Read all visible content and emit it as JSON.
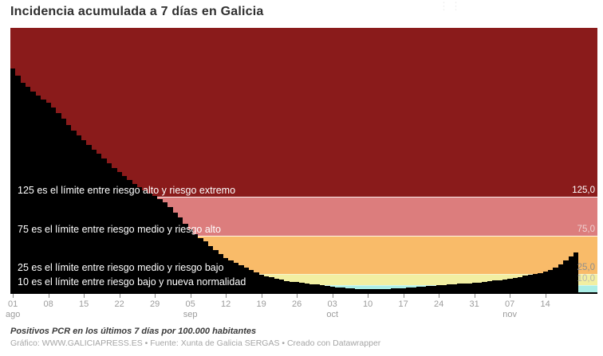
{
  "title": "Incidencia acumulada a 7 días en Galicia",
  "menu_icon_glyph": "⋮⋮",
  "footer": {
    "note": "Positivos PCR en los últimos 7 días por 100.000 habitantes",
    "credit": "Gráfico: WWW.GALICIAPRESS.ES • Fuente: Xunta de Galicia SERGAS • Creado con Datawrapper"
  },
  "chart_data": {
    "type": "bar",
    "title": "Incidencia acumulada a 7 días en Galicia",
    "ylabel": "Positivos PCR en los últimos 7 días por 100.000 habitantes",
    "x_start": "01 ago",
    "x_end": "20 nov",
    "ylim": [
      0,
      345
    ],
    "grid": false,
    "bar_color": "#000000",
    "values": [
      292,
      283,
      274,
      268,
      262,
      257,
      252,
      248,
      241,
      234,
      227,
      219,
      211,
      205,
      199,
      193,
      187,
      181,
      175,
      169,
      163,
      157,
      152,
      147,
      142,
      138,
      134,
      130,
      126,
      122,
      118,
      112,
      105,
      98,
      90,
      83,
      77,
      72,
      67,
      61,
      56,
      51,
      46,
      42,
      39,
      36,
      33,
      30,
      27,
      24,
      22,
      20.5,
      19,
      17.5,
      16,
      15,
      14.2,
      13.5,
      12.6,
      11.9,
      11.4,
      10.4,
      9.4,
      8.4,
      7.6,
      6.9,
      6.3,
      5.8,
      5.4,
      5.1,
      5.0,
      5.0,
      5.1,
      5.3,
      5.6,
      5.9,
      6.3,
      6.7,
      7.1,
      7.6,
      8.1,
      8.6,
      9.2,
      9.8,
      10.4,
      10.8,
      11.2,
      11.6,
      12.0,
      12.4,
      12.8,
      13.2,
      13.8,
      14.5,
      15.3,
      16.1,
      17.0,
      18.0,
      19.0,
      20.0,
      21.2,
      22.4,
      23.6,
      24.9,
      26.3,
      27.8,
      30.5,
      33.5,
      37.5,
      42.0,
      47.5,
      53.0
    ],
    "x_ticks": [
      {
        "day": "01",
        "month": "ago"
      },
      {
        "day": "08"
      },
      {
        "day": "15"
      },
      {
        "day": "22"
      },
      {
        "day": "29"
      },
      {
        "day": "05",
        "month": "sep"
      },
      {
        "day": "12"
      },
      {
        "day": "19"
      },
      {
        "day": "26"
      },
      {
        "day": "03",
        "month": "oct"
      },
      {
        "day": "10"
      },
      {
        "day": "17"
      },
      {
        "day": "24"
      },
      {
        "day": "31"
      },
      {
        "day": "07",
        "month": "nov"
      },
      {
        "day": "14"
      }
    ],
    "bands": [
      {
        "from": 0,
        "to": 10,
        "color": "#abeee6"
      },
      {
        "from": 10,
        "to": 25,
        "color": "#f2efa2"
      },
      {
        "from": 25,
        "to": 75,
        "color": "#f9bb69"
      },
      {
        "from": 75,
        "to": 125,
        "color": "#dc7d7d"
      },
      {
        "from": 125,
        "to": 345,
        "color": "#8a1b1b"
      }
    ],
    "annotations": [
      {
        "value": 125,
        "text": "125 es el límite entre riesgo alto y riesgo extremo",
        "axis_label": "125,0",
        "axis_label_color": "#ffffff"
      },
      {
        "value": 75,
        "text": "75 es el límite entre riesgo medio y riesgo alto",
        "axis_label": "75,0",
        "axis_label_color": "#eed2d2"
      },
      {
        "value": 25,
        "text": "25 es el límite entre riesgo medio y riesgo bajo",
        "axis_label": "25,0",
        "axis_label_color": "#8f8f8c"
      },
      {
        "value": 10,
        "text": "10 es el límite entre riesgo bajo y nueva normalidad",
        "axis_label": "10,0",
        "axis_label_color": "#b8b8ae"
      }
    ]
  }
}
